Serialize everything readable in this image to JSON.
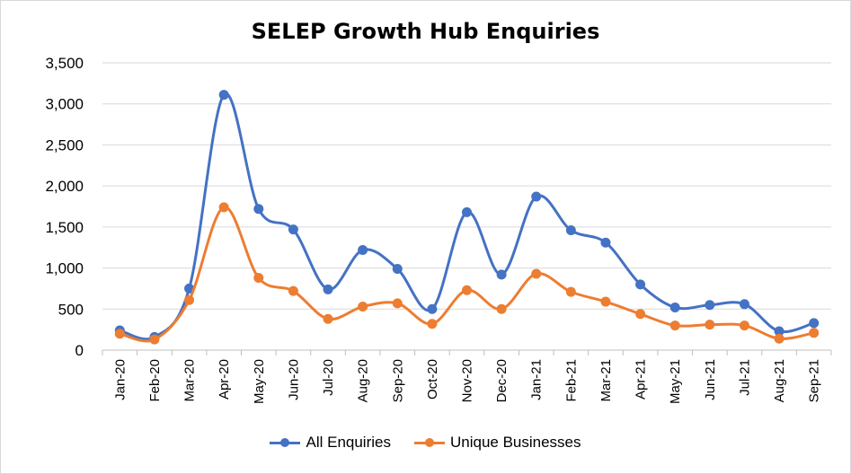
{
  "chart_data": {
    "type": "line",
    "title": "SELEP Growth Hub Enquiries",
    "xlabel": "",
    "ylabel": "",
    "ylim": [
      0,
      3500
    ],
    "yticks": [
      "0",
      "500",
      "1,000",
      "1,500",
      "2,000",
      "2,500",
      "3,000",
      "3,500"
    ],
    "grid": true,
    "smooth": true,
    "legend_position": "bottom",
    "categories": [
      "Jan-20",
      "Feb-20",
      "Mar-20",
      "Apr-20",
      "May-20",
      "Jun-20",
      "Jul-20",
      "Aug-20",
      "Sep-20",
      "Oct-20",
      "Nov-20",
      "Dec-20",
      "Jan-21",
      "Feb-21",
      "Mar-21",
      "Apr-21",
      "May-21",
      "Jun-21",
      "Jul-21",
      "Aug-21",
      "Sep-21"
    ],
    "series": [
      {
        "name": "All Enquiries",
        "color": "#4472c4",
        "values": [
          240,
          160,
          750,
          3110,
          1720,
          1470,
          740,
          1220,
          990,
          500,
          1680,
          920,
          1870,
          1460,
          1310,
          800,
          520,
          550,
          560,
          230,
          330
        ]
      },
      {
        "name": "Unique Businesses",
        "color": "#ed7d31",
        "values": [
          200,
          130,
          610,
          1740,
          880,
          720,
          380,
          530,
          570,
          320,
          730,
          500,
          930,
          710,
          590,
          440,
          300,
          310,
          300,
          140,
          210
        ]
      }
    ]
  }
}
